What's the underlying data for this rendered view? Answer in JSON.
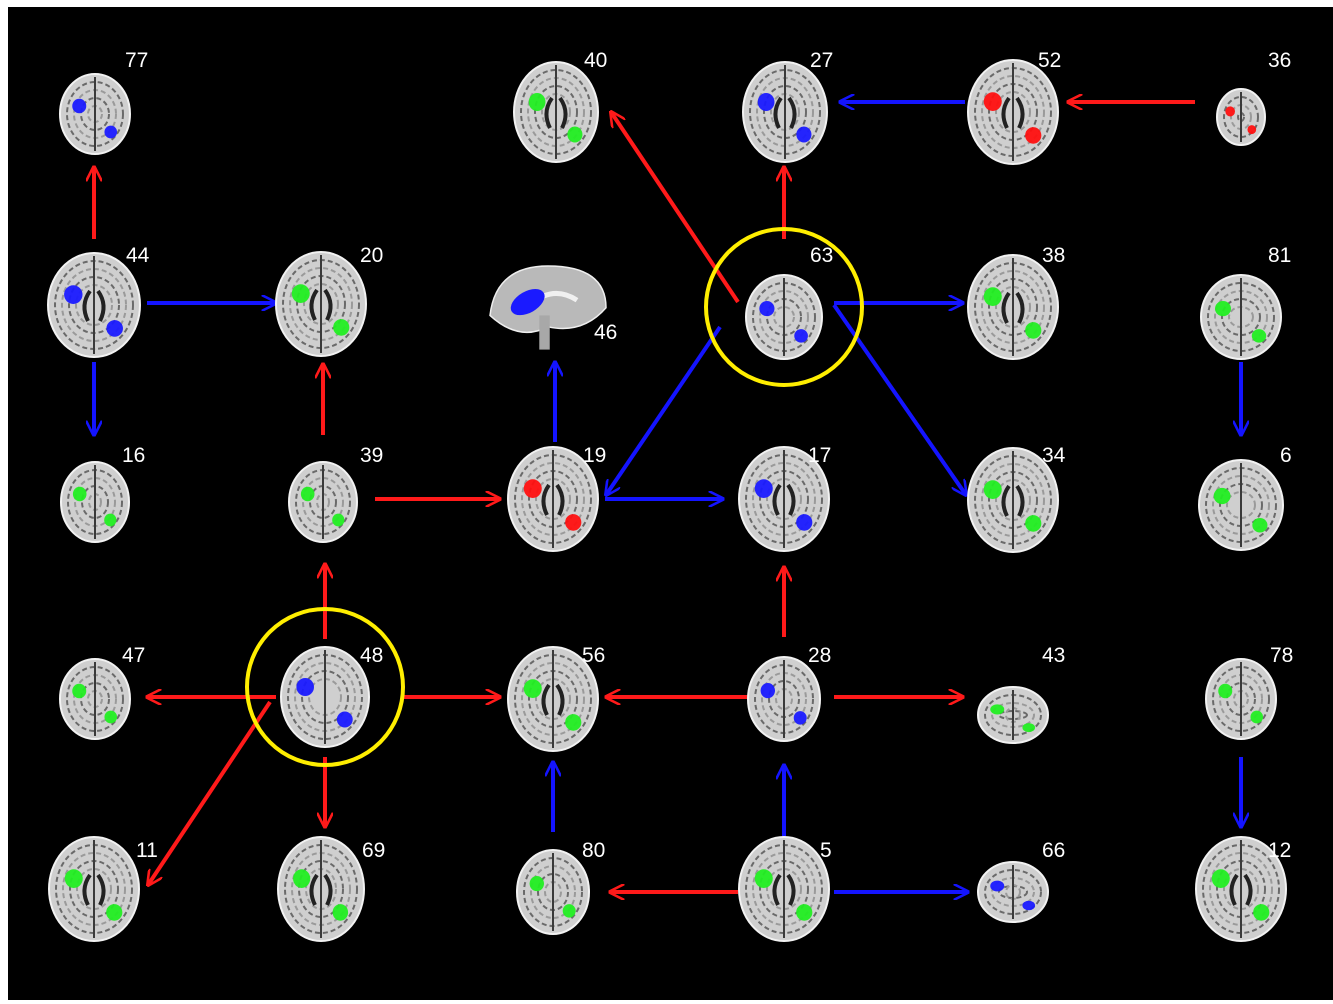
{
  "colors": {
    "background": "#000000",
    "positive_arrow": "#ff1a1a",
    "negative_arrow": "#1414ff",
    "highlight_circle": "#ffee00",
    "activation_red": "#ff1010",
    "activation_blue": "#1a1aff",
    "activation_green": "#22ee22"
  },
  "nodes": [
    {
      "id": "77",
      "label": "77",
      "view": "axial-cerebellum",
      "activation": "blue"
    },
    {
      "id": "40",
      "label": "40",
      "view": "axial",
      "activation": "green"
    },
    {
      "id": "27",
      "label": "27",
      "view": "axial",
      "activation": "blue"
    },
    {
      "id": "52",
      "label": "52",
      "view": "axial",
      "activation": "red"
    },
    {
      "id": "36",
      "label": "36",
      "view": "axial-small",
      "activation": "red"
    },
    {
      "id": "44",
      "label": "44",
      "view": "axial",
      "activation": "blue"
    },
    {
      "id": "20",
      "label": "20",
      "view": "axial",
      "activation": "green"
    },
    {
      "id": "46",
      "label": "46",
      "view": "sagittal",
      "activation": "blue"
    },
    {
      "id": "63",
      "label": "63",
      "view": "axial-cerebellum",
      "activation": "blue",
      "highlighted": true
    },
    {
      "id": "38",
      "label": "38",
      "view": "axial",
      "activation": "green"
    },
    {
      "id": "81",
      "label": "81",
      "view": "axial-cerebellum",
      "activation": "green"
    },
    {
      "id": "16",
      "label": "16",
      "view": "axial-small",
      "activation": "green"
    },
    {
      "id": "39",
      "label": "39",
      "view": "axial-small",
      "activation": "green"
    },
    {
      "id": "19",
      "label": "19",
      "view": "axial",
      "activation": "red"
    },
    {
      "id": "17",
      "label": "17",
      "view": "axial",
      "activation": "blue"
    },
    {
      "id": "34",
      "label": "34",
      "view": "axial",
      "activation": "green"
    },
    {
      "id": "6",
      "label": "6",
      "view": "axial-cerebellum",
      "activation": "green"
    },
    {
      "id": "47",
      "label": "47",
      "view": "axial-small",
      "activation": "green"
    },
    {
      "id": "48",
      "label": "48",
      "view": "axial-cerebellum",
      "activation": "blue",
      "highlighted": true
    },
    {
      "id": "56",
      "label": "56",
      "view": "axial",
      "activation": "green"
    },
    {
      "id": "28",
      "label": "28",
      "view": "axial-small",
      "activation": "blue"
    },
    {
      "id": "43",
      "label": "43",
      "view": "axial-cerebellum-small",
      "activation": "green"
    },
    {
      "id": "78",
      "label": "78",
      "view": "axial-small",
      "activation": "green"
    },
    {
      "id": "11",
      "label": "11",
      "view": "axial",
      "activation": "green"
    },
    {
      "id": "69",
      "label": "69",
      "view": "axial",
      "activation": "green"
    },
    {
      "id": "80",
      "label": "80",
      "view": "axial-small",
      "activation": "green"
    },
    {
      "id": "5",
      "label": "5",
      "view": "axial",
      "activation": "green"
    },
    {
      "id": "66",
      "label": "66",
      "view": "axial-cerebellum-small",
      "activation": "blue"
    },
    {
      "id": "12",
      "label": "12",
      "view": "axial",
      "activation": "green"
    }
  ],
  "edges": [
    {
      "from": "44",
      "to": "77",
      "sign": "positive"
    },
    {
      "from": "44",
      "to": "20",
      "sign": "negative"
    },
    {
      "from": "44",
      "to": "16",
      "sign": "negative"
    },
    {
      "from": "39",
      "to": "20",
      "sign": "positive"
    },
    {
      "from": "39",
      "to": "19",
      "sign": "positive"
    },
    {
      "from": "19",
      "to": "46",
      "sign": "negative"
    },
    {
      "from": "19",
      "to": "17",
      "sign": "negative"
    },
    {
      "from": "63",
      "to": "40",
      "sign": "positive"
    },
    {
      "from": "63",
      "to": "27",
      "sign": "positive"
    },
    {
      "from": "63",
      "to": "38",
      "sign": "negative"
    },
    {
      "from": "63",
      "to": "34",
      "sign": "negative"
    },
    {
      "from": "63",
      "to": "19",
      "sign": "negative"
    },
    {
      "from": "52",
      "to": "27",
      "sign": "negative"
    },
    {
      "from": "36",
      "to": "52",
      "sign": "positive"
    },
    {
      "from": "81",
      "to": "6",
      "sign": "negative"
    },
    {
      "from": "48",
      "to": "39",
      "sign": "positive"
    },
    {
      "from": "48",
      "to": "47",
      "sign": "positive"
    },
    {
      "from": "48",
      "to": "56",
      "sign": "positive"
    },
    {
      "from": "48",
      "to": "69",
      "sign": "positive"
    },
    {
      "from": "48",
      "to": "11",
      "sign": "positive"
    },
    {
      "from": "28",
      "to": "56",
      "sign": "positive"
    },
    {
      "from": "28",
      "to": "17",
      "sign": "positive"
    },
    {
      "from": "28",
      "to": "43",
      "sign": "positive"
    },
    {
      "from": "80",
      "to": "56",
      "sign": "negative"
    },
    {
      "from": "5",
      "to": "80",
      "sign": "positive"
    },
    {
      "from": "5",
      "to": "28",
      "sign": "negative"
    },
    {
      "from": "5",
      "to": "66",
      "sign": "negative"
    },
    {
      "from": "78",
      "to": "12",
      "sign": "negative"
    }
  ]
}
